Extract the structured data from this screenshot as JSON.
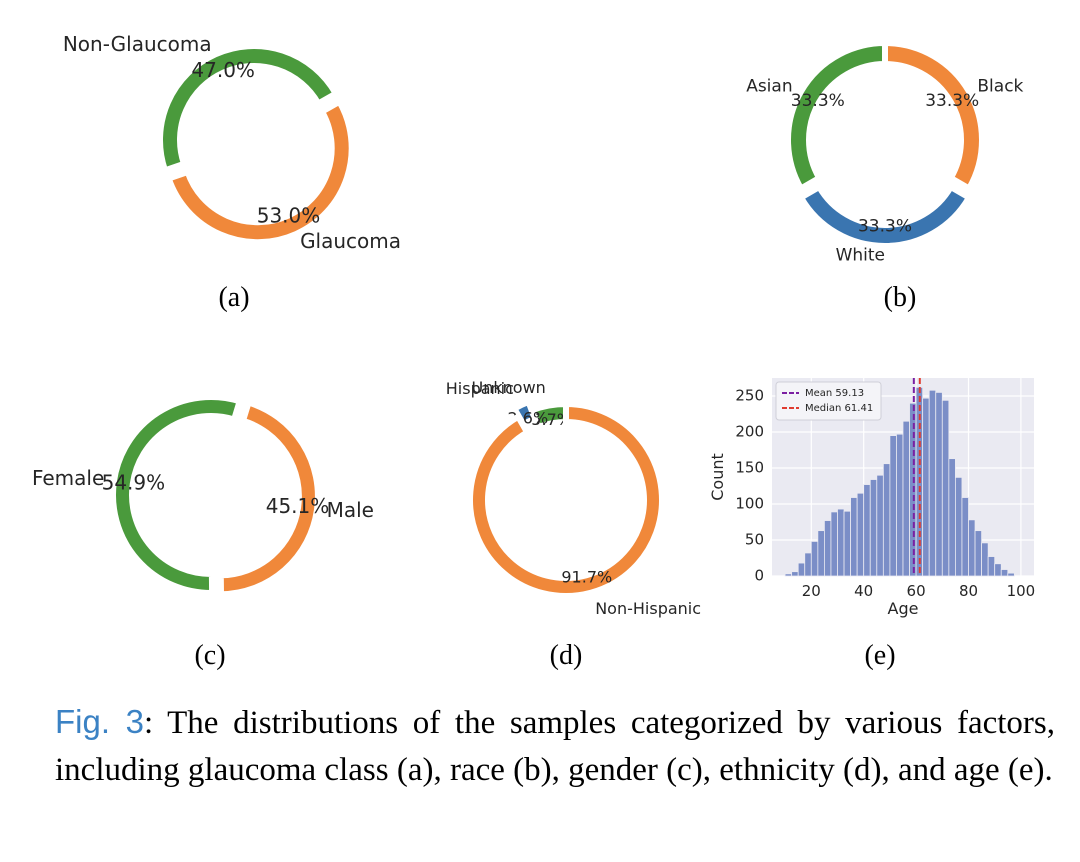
{
  "chart_data": [
    {
      "id": "a",
      "type": "pie",
      "subtitle": "(a)",
      "slices": [
        {
          "label": "Non-Glaucoma",
          "value": 47.0,
          "pct": "47.0%",
          "color": "#4a9a3c"
        },
        {
          "label": "Glaucoma",
          "value": 53.0,
          "pct": "53.0%",
          "color": "#f0883a"
        }
      ]
    },
    {
      "id": "b",
      "type": "pie",
      "subtitle": "(b)",
      "slices": [
        {
          "label": "Asian",
          "value": 33.33,
          "pct": "33.3%",
          "color": "#4a9a3c"
        },
        {
          "label": "White",
          "value": 33.33,
          "pct": "33.3%",
          "color": "#3a75b0"
        },
        {
          "label": "Black",
          "value": 33.33,
          "pct": "33.3%",
          "color": "#f0883a"
        }
      ]
    },
    {
      "id": "c",
      "type": "pie",
      "subtitle": "(c)",
      "slices": [
        {
          "label": "Female",
          "value": 54.9,
          "pct": "54.9%",
          "color": "#4a9a3c"
        },
        {
          "label": "Male",
          "value": 45.1,
          "pct": "45.1%",
          "color": "#f0883a"
        }
      ]
    },
    {
      "id": "d",
      "type": "pie",
      "subtitle": "(d)",
      "slices": [
        {
          "label": "Unknown",
          "value": 5.7,
          "pct": "5.7%",
          "color": "#4a9a3c"
        },
        {
          "label": "Hispanic",
          "value": 2.6,
          "pct": "2.6%",
          "color": "#3a75b0"
        },
        {
          "label": "Non-Hispanic",
          "value": 91.7,
          "pct": "91.7%",
          "color": "#f0883a"
        }
      ]
    },
    {
      "id": "e",
      "type": "bar",
      "subtitle": "(e)",
      "xlabel": "Age",
      "ylabel": "Count",
      "xlim": [
        5,
        105
      ],
      "ylim": [
        0,
        275
      ],
      "xticks": [
        20,
        40,
        60,
        80,
        100
      ],
      "yticks": [
        0,
        50,
        100,
        150,
        200,
        250
      ],
      "grid": true,
      "legend_position": "top-left",
      "bar_color": "#7b8ec7",
      "bins": [
        {
          "x0": 10,
          "x1": 12.5,
          "count": 3
        },
        {
          "x0": 12.5,
          "x1": 15,
          "count": 6
        },
        {
          "x0": 15,
          "x1": 17.5,
          "count": 18
        },
        {
          "x0": 17.5,
          "x1": 20,
          "count": 32
        },
        {
          "x0": 20,
          "x1": 22.5,
          "count": 48
        },
        {
          "x0": 22.5,
          "x1": 25,
          "count": 63
        },
        {
          "x0": 25,
          "x1": 27.5,
          "count": 77
        },
        {
          "x0": 27.5,
          "x1": 30,
          "count": 89
        },
        {
          "x0": 30,
          "x1": 32.5,
          "count": 93
        },
        {
          "x0": 32.5,
          "x1": 35,
          "count": 90
        },
        {
          "x0": 35,
          "x1": 37.5,
          "count": 109
        },
        {
          "x0": 37.5,
          "x1": 40,
          "count": 115
        },
        {
          "x0": 40,
          "x1": 42.5,
          "count": 127
        },
        {
          "x0": 42.5,
          "x1": 45,
          "count": 134
        },
        {
          "x0": 45,
          "x1": 47.5,
          "count": 140
        },
        {
          "x0": 47.5,
          "x1": 50,
          "count": 156
        },
        {
          "x0": 50,
          "x1": 52.5,
          "count": 195
        },
        {
          "x0": 52.5,
          "x1": 55,
          "count": 197
        },
        {
          "x0": 55,
          "x1": 57.5,
          "count": 215
        },
        {
          "x0": 57.5,
          "x1": 60,
          "count": 240
        },
        {
          "x0": 60,
          "x1": 62.5,
          "count": 262
        },
        {
          "x0": 62.5,
          "x1": 65,
          "count": 247
        },
        {
          "x0": 65,
          "x1": 67.5,
          "count": 258
        },
        {
          "x0": 67.5,
          "x1": 70,
          "count": 255
        },
        {
          "x0": 70,
          "x1": 72.5,
          "count": 244
        },
        {
          "x0": 72.5,
          "x1": 75,
          "count": 163
        },
        {
          "x0": 75,
          "x1": 77.5,
          "count": 137
        },
        {
          "x0": 77.5,
          "x1": 80,
          "count": 109
        },
        {
          "x0": 80,
          "x1": 82.5,
          "count": 78
        },
        {
          "x0": 82.5,
          "x1": 85,
          "count": 63
        },
        {
          "x0": 85,
          "x1": 87.5,
          "count": 46
        },
        {
          "x0": 87.5,
          "x1": 90,
          "count": 27
        },
        {
          "x0": 90,
          "x1": 92.5,
          "count": 17
        },
        {
          "x0": 92.5,
          "x1": 95,
          "count": 9
        },
        {
          "x0": 95,
          "x1": 97.5,
          "count": 4
        }
      ],
      "lines": [
        {
          "label": "Mean 59.13",
          "x": 59.13,
          "color": "#7b1fa2"
        },
        {
          "label": "Median 61.41",
          "x": 61.41,
          "color": "#e03c31"
        }
      ]
    }
  ],
  "caption": {
    "figref": "Fig. 3",
    "text": ":  The distributions of the samples categorized by various factors, including glaucoma class (a), race (b), gender (c), ethnicity (d), and age (e)."
  }
}
